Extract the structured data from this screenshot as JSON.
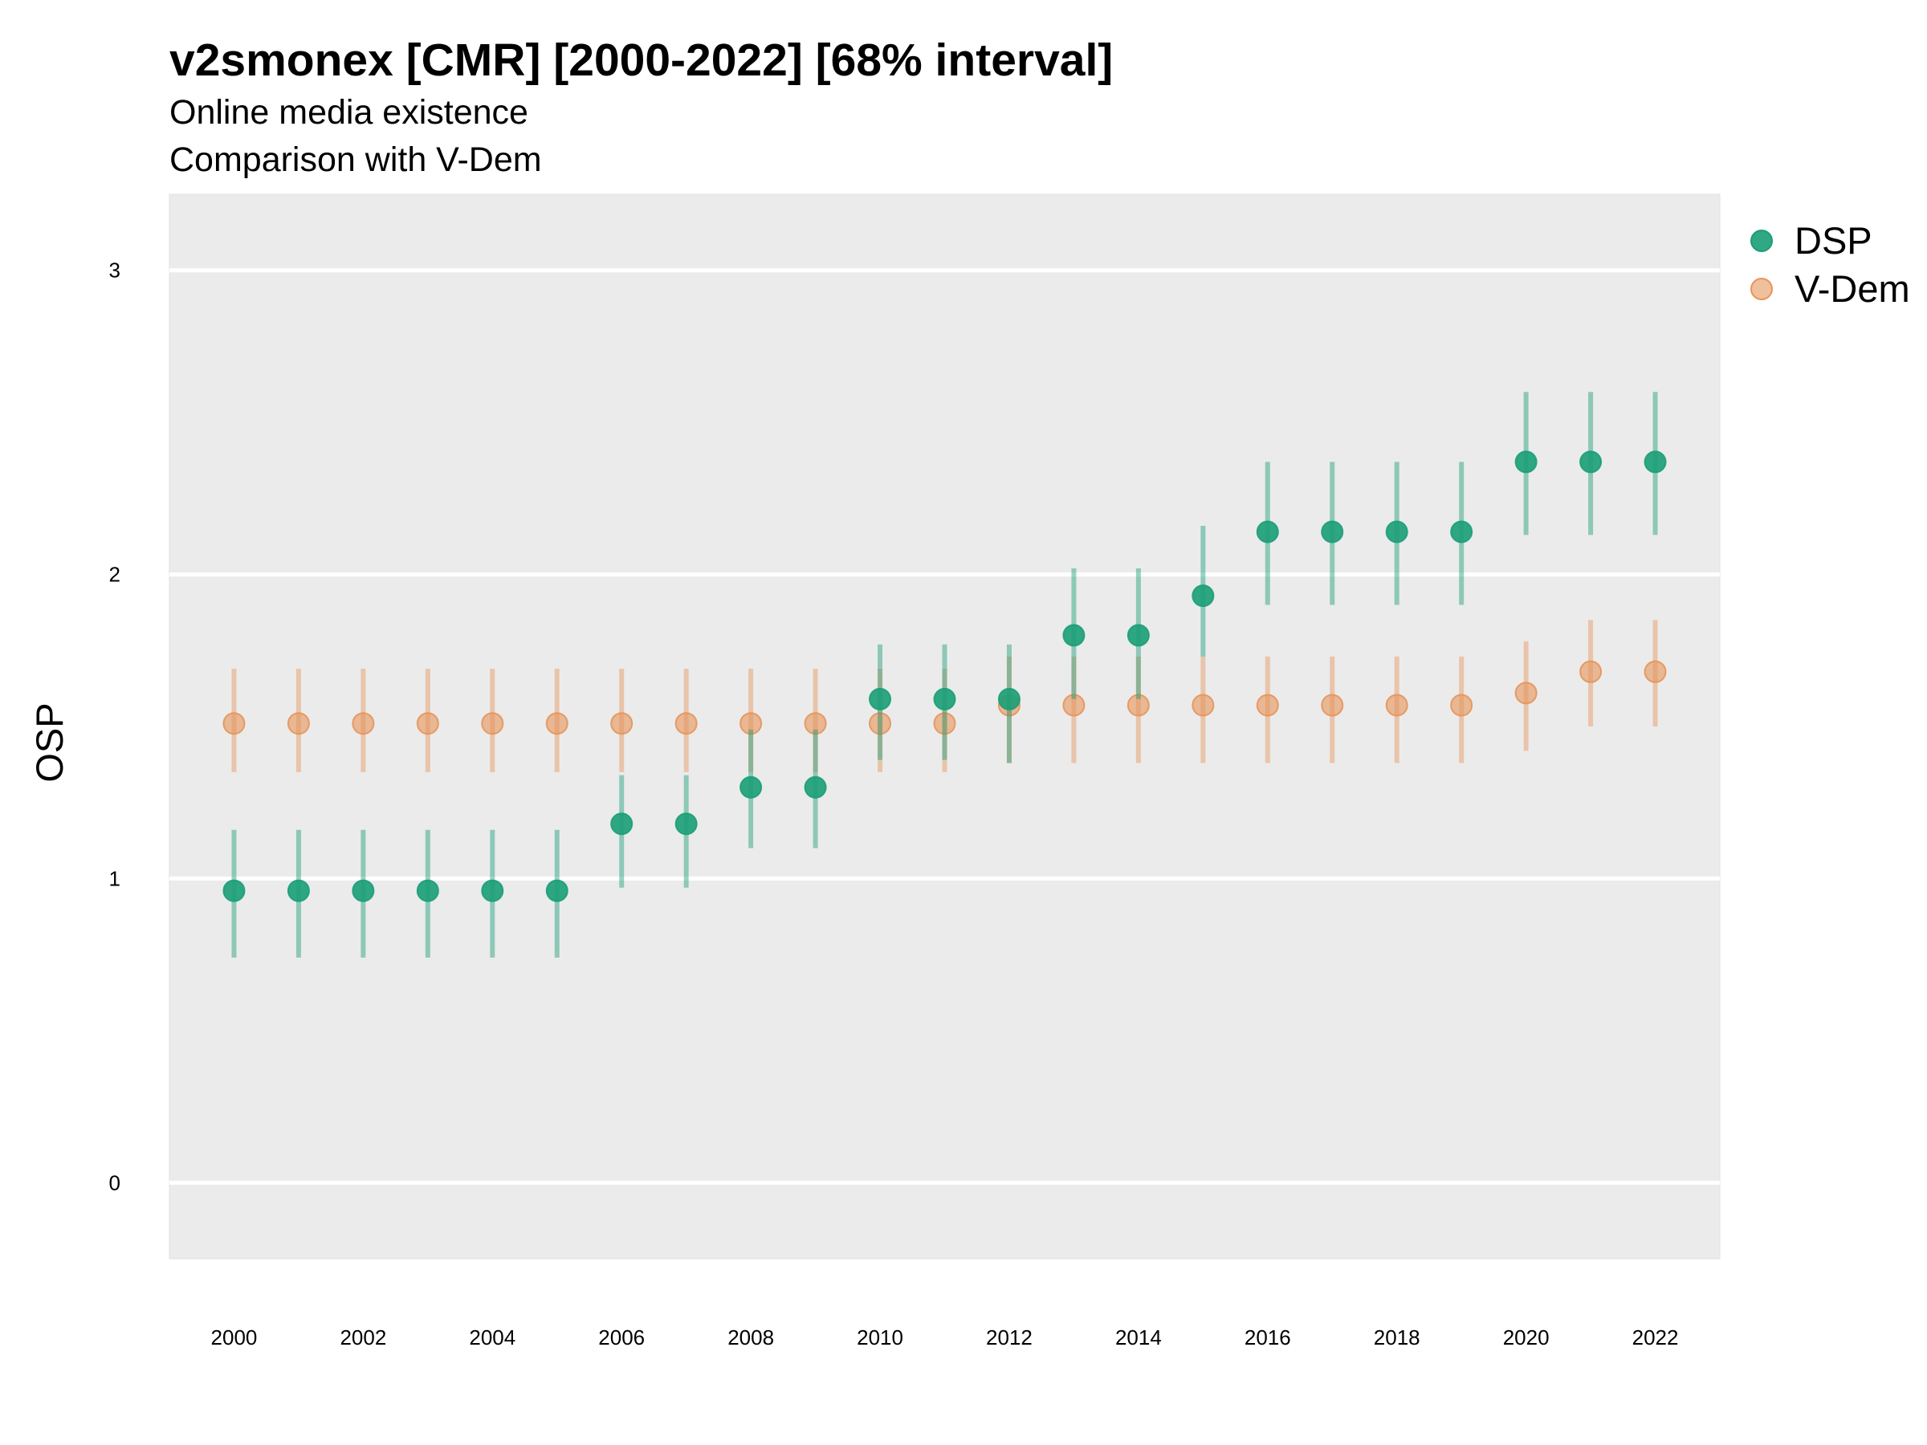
{
  "chart_data": {
    "type": "scatter",
    "title": "v2smonex [CMR] [2000-2022] [68% interval]",
    "subtitle": "Online media existence",
    "subtitle2": "Comparison with V-Dem",
    "xlabel": "",
    "ylabel": "OSP",
    "xlim": [
      1999,
      2023
    ],
    "ylim": [
      -0.25,
      3.25
    ],
    "y_ticks": [
      "0",
      "1",
      "2",
      "3"
    ],
    "x_ticks": [
      "2000",
      "2002",
      "2004",
      "2006",
      "2008",
      "2010",
      "2012",
      "2014",
      "2016",
      "2018",
      "2020",
      "2022"
    ],
    "grid": true,
    "legend_position": "right",
    "x": [
      2000,
      2001,
      2002,
      2003,
      2004,
      2005,
      2006,
      2007,
      2008,
      2009,
      2010,
      2011,
      2012,
      2013,
      2014,
      2015,
      2016,
      2017,
      2018,
      2019,
      2020,
      2021,
      2022
    ],
    "series": [
      {
        "name": "DSP",
        "color": "#1b9e77",
        "values": [
          0.96,
          0.96,
          0.96,
          0.96,
          0.96,
          0.96,
          1.18,
          1.18,
          1.3,
          1.3,
          1.59,
          1.59,
          1.59,
          1.8,
          1.8,
          1.93,
          2.14,
          2.14,
          2.14,
          2.14,
          2.37,
          2.37,
          2.37
        ],
        "lower": [
          0.74,
          0.74,
          0.74,
          0.74,
          0.74,
          0.74,
          0.97,
          0.97,
          1.1,
          1.1,
          1.39,
          1.39,
          1.38,
          1.59,
          1.59,
          1.73,
          1.9,
          1.9,
          1.9,
          1.9,
          2.13,
          2.13,
          2.13
        ],
        "upper": [
          1.16,
          1.16,
          1.16,
          1.16,
          1.16,
          1.16,
          1.34,
          1.34,
          1.49,
          1.49,
          1.77,
          1.77,
          1.77,
          2.02,
          2.02,
          2.16,
          2.37,
          2.37,
          2.37,
          2.37,
          2.6,
          2.6,
          2.6
        ]
      },
      {
        "name": "V-Dem",
        "color": "#e6955a",
        "values": [
          1.51,
          1.51,
          1.51,
          1.51,
          1.51,
          1.51,
          1.51,
          1.51,
          1.51,
          1.51,
          1.51,
          1.51,
          1.57,
          1.57,
          1.57,
          1.57,
          1.57,
          1.57,
          1.57,
          1.57,
          1.61,
          1.68,
          1.68
        ],
        "lower": [
          1.35,
          1.35,
          1.35,
          1.35,
          1.35,
          1.35,
          1.35,
          1.35,
          1.35,
          1.35,
          1.35,
          1.35,
          1.38,
          1.38,
          1.38,
          1.38,
          1.38,
          1.38,
          1.38,
          1.38,
          1.42,
          1.5,
          1.5
        ],
        "upper": [
          1.69,
          1.69,
          1.69,
          1.69,
          1.69,
          1.69,
          1.69,
          1.69,
          1.69,
          1.69,
          1.69,
          1.69,
          1.73,
          1.73,
          1.73,
          1.73,
          1.73,
          1.73,
          1.73,
          1.73,
          1.78,
          1.85,
          1.85
        ]
      }
    ]
  }
}
